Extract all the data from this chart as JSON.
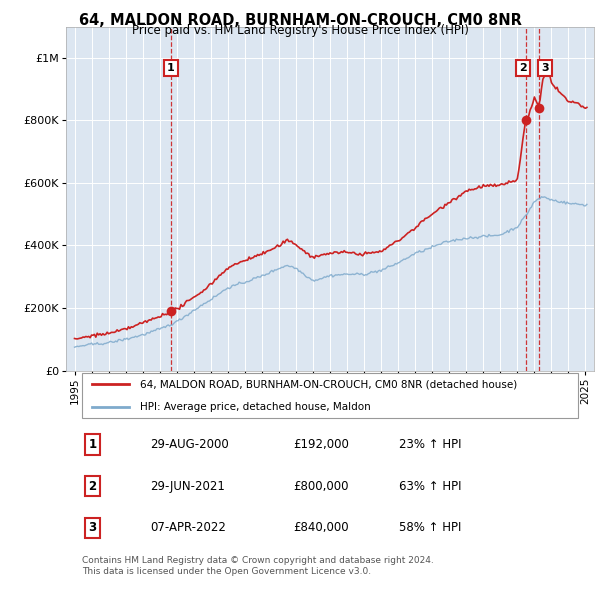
{
  "title": "64, MALDON ROAD, BURNHAM-ON-CROUCH, CM0 8NR",
  "subtitle": "Price paid vs. HM Land Registry's House Price Index (HPI)",
  "background_color": "#ffffff",
  "plot_bg_color": "#dce6f1",
  "legend_label_red": "64, MALDON ROAD, BURNHAM-ON-CROUCH, CM0 8NR (detached house)",
  "legend_label_blue": "HPI: Average price, detached house, Maldon",
  "footer": "Contains HM Land Registry data © Crown copyright and database right 2024.\nThis data is licensed under the Open Government Licence v3.0.",
  "sales": [
    {
      "date_num": 2000.66,
      "price": 192000,
      "label": "1"
    },
    {
      "date_num": 2021.49,
      "price": 800000,
      "label": "2"
    },
    {
      "date_num": 2022.27,
      "price": 840000,
      "label": "3"
    }
  ],
  "sale_table": [
    {
      "num": "1",
      "date": "29-AUG-2000",
      "price": "£192,000",
      "pct": "23% ↑ HPI"
    },
    {
      "num": "2",
      "date": "29-JUN-2021",
      "price": "£800,000",
      "pct": "63% ↑ HPI"
    },
    {
      "num": "3",
      "date": "07-APR-2022",
      "price": "£840,000",
      "pct": "58% ↑ HPI"
    }
  ],
  "yticks": [
    0,
    200000,
    400000,
    600000,
    800000,
    1000000
  ],
  "ylabels": [
    "£0",
    "£200K",
    "£400K",
    "£600K",
    "£800K",
    "£1M"
  ],
  "ylim": [
    0,
    1100000
  ],
  "xlim": [
    1994.5,
    2025.5
  ],
  "hpi_breakpoints": [
    [
      1995.0,
      75000
    ],
    [
      1996.0,
      83000
    ],
    [
      1997.0,
      90000
    ],
    [
      1998.0,
      102000
    ],
    [
      1999.0,
      117000
    ],
    [
      2000.0,
      135000
    ],
    [
      2001.0,
      158000
    ],
    [
      2002.0,
      195000
    ],
    [
      2003.0,
      230000
    ],
    [
      2004.0,
      268000
    ],
    [
      2005.0,
      285000
    ],
    [
      2006.0,
      305000
    ],
    [
      2007.0,
      330000
    ],
    [
      2007.5,
      340000
    ],
    [
      2008.0,
      330000
    ],
    [
      2009.0,
      290000
    ],
    [
      2010.0,
      305000
    ],
    [
      2011.0,
      310000
    ],
    [
      2012.0,
      310000
    ],
    [
      2013.0,
      320000
    ],
    [
      2014.0,
      345000
    ],
    [
      2015.0,
      375000
    ],
    [
      2016.0,
      395000
    ],
    [
      2017.0,
      415000
    ],
    [
      2018.0,
      425000
    ],
    [
      2019.0,
      430000
    ],
    [
      2020.0,
      435000
    ],
    [
      2021.0,
      460000
    ],
    [
      2021.5,
      495000
    ],
    [
      2022.0,
      540000
    ],
    [
      2022.5,
      555000
    ],
    [
      2023.0,
      545000
    ],
    [
      2024.0,
      535000
    ],
    [
      2025.0,
      530000
    ]
  ],
  "prop_breakpoints": [
    [
      1995.0,
      100000
    ],
    [
      1996.0,
      112000
    ],
    [
      1997.0,
      120000
    ],
    [
      1998.0,
      135000
    ],
    [
      1999.0,
      153000
    ],
    [
      2000.0,
      175000
    ],
    [
      2000.66,
      192000
    ],
    [
      2001.0,
      198000
    ],
    [
      2002.0,
      235000
    ],
    [
      2003.0,
      278000
    ],
    [
      2004.0,
      330000
    ],
    [
      2005.0,
      355000
    ],
    [
      2006.0,
      375000
    ],
    [
      2007.0,
      400000
    ],
    [
      2007.5,
      418000
    ],
    [
      2008.0,
      405000
    ],
    [
      2009.0,
      360000
    ],
    [
      2010.0,
      375000
    ],
    [
      2011.0,
      375000
    ],
    [
      2012.0,
      370000
    ],
    [
      2013.0,
      380000
    ],
    [
      2014.0,
      415000
    ],
    [
      2015.0,
      455000
    ],
    [
      2016.0,
      500000
    ],
    [
      2017.0,
      540000
    ],
    [
      2018.0,
      575000
    ],
    [
      2019.0,
      590000
    ],
    [
      2020.0,
      590000
    ],
    [
      2020.5,
      600000
    ],
    [
      2021.0,
      610000
    ],
    [
      2021.49,
      800000
    ],
    [
      2021.7,
      820000
    ],
    [
      2022.0,
      870000
    ],
    [
      2022.27,
      840000
    ],
    [
      2022.5,
      930000
    ],
    [
      2022.8,
      960000
    ],
    [
      2023.0,
      920000
    ],
    [
      2023.5,
      890000
    ],
    [
      2024.0,
      860000
    ],
    [
      2024.5,
      855000
    ],
    [
      2025.0,
      840000
    ]
  ]
}
